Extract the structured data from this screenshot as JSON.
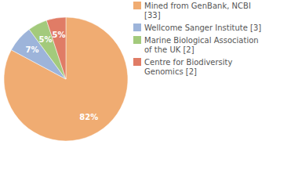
{
  "chart_data": {
    "type": "pie",
    "categories": [
      "Mined from GenBank, NCBI [33]",
      "Wellcome Sanger Institute [3]",
      "Marine Biological Association of the UK [2]",
      "Centre for Biodiversity Genomics [2]"
    ],
    "values": [
      82,
      7,
      5,
      5
    ],
    "value_labels": [
      "82%",
      "7%",
      "5%",
      "5%"
    ],
    "colors": [
      "#f0ac72",
      "#9db4da",
      "#a3ca7c",
      "#e07c66"
    ],
    "data_labels": true,
    "legend": "upper right"
  }
}
